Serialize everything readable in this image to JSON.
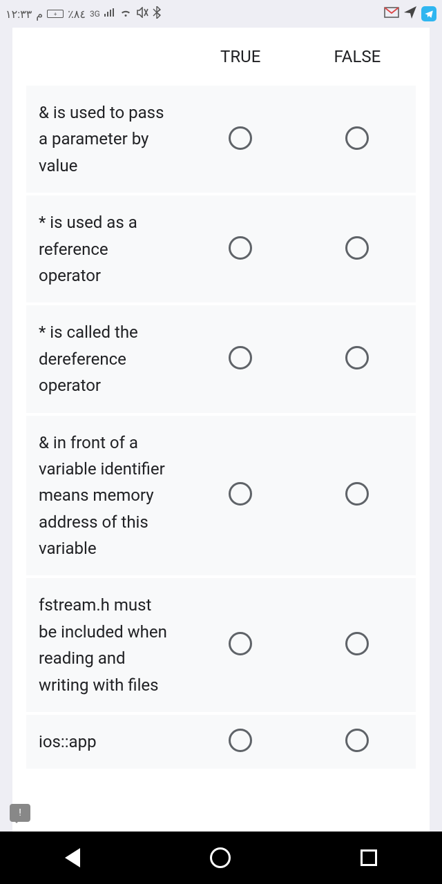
{
  "status": {
    "time": "١٢:٣٣",
    "ampm": "م",
    "battery": "٪٨٤",
    "network": "3G"
  },
  "quiz": {
    "columns": [
      "TRUE",
      "FALSE"
    ],
    "questions": [
      "& is used to pass a parameter by value",
      "* is used as a reference operator",
      "* is called the dereference operator",
      "& in front of a variable identifier means memory address of this variable",
      "fstream.h must be included when reading and writing with files",
      "ios::app"
    ]
  }
}
